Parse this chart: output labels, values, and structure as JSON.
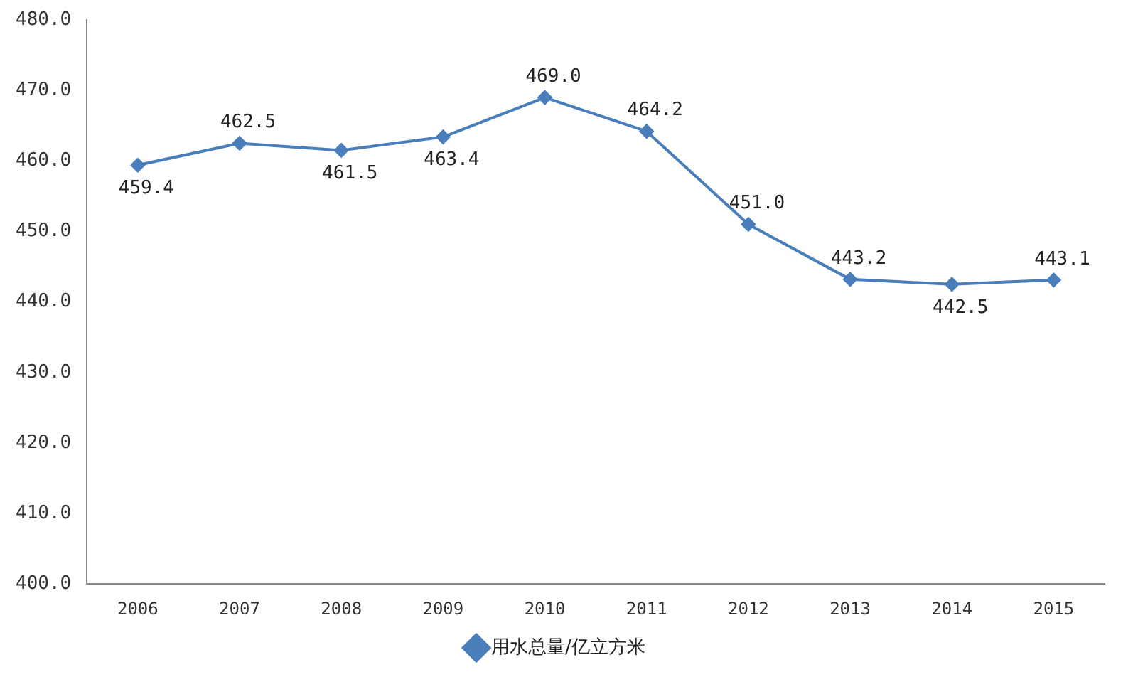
{
  "chart_data": {
    "type": "line",
    "categories": [
      "2006",
      "2007",
      "2008",
      "2009",
      "2010",
      "2011",
      "2012",
      "2013",
      "2014",
      "2015"
    ],
    "series": [
      {
        "name": "用水总量/亿立方米",
        "color": "#4a7ebb",
        "values": [
          459.4,
          462.5,
          461.5,
          463.4,
          469.0,
          464.2,
          451.0,
          443.2,
          442.5,
          443.1
        ],
        "value_labels": [
          "459.4",
          "462.5",
          "461.5",
          "463.4",
          "469.0",
          "464.2",
          "451.0",
          "443.2",
          "442.5",
          "443.1"
        ]
      }
    ],
    "ylim": [
      400,
      480
    ],
    "yticks": [
      {
        "value": 400,
        "label": "400.0"
      },
      {
        "value": 410,
        "label": "410.0"
      },
      {
        "value": 420,
        "label": "420.0"
      },
      {
        "value": 430,
        "label": "430.0"
      },
      {
        "value": 440,
        "label": "440.0"
      },
      {
        "value": 450,
        "label": "450.0"
      },
      {
        "value": 460,
        "label": "460.0"
      },
      {
        "value": 470,
        "label": "470.0"
      },
      {
        "value": 480,
        "label": "480.0"
      }
    ],
    "grid": false,
    "legend": "bottom",
    "marker": "diamond",
    "line_style": "solid"
  }
}
